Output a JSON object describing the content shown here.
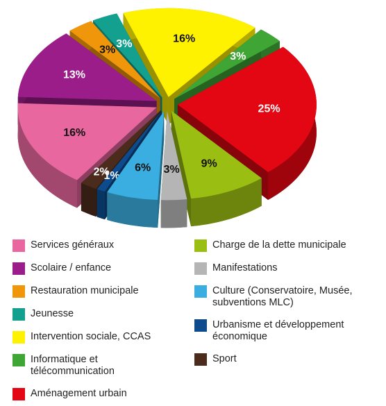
{
  "chart_data": {
    "type": "pie",
    "categories": [
      "Services généraux",
      "Scolaire / enfance",
      "Restauration municipale",
      "Jeunesse",
      "Intervention sociale, CCAS",
      "Informatique et télécommunication",
      "Aménagement urbain",
      "Charge de la dette municipale",
      "Manifestations",
      "Culture (Conservatoire, Musée, subventions MLC)",
      "Urbanisme et développement économique",
      "Sport"
    ],
    "values": [
      16,
      13,
      3,
      3,
      16,
      3,
      25,
      9,
      3,
      6,
      1,
      2
    ],
    "value_labels": [
      "16%",
      "13%",
      "3%",
      "3%",
      "16%",
      "3%",
      "25%",
      "9%",
      "3%",
      "6%",
      "1%",
      "2%"
    ],
    "colors": [
      "#e8679f",
      "#9b1d8a",
      "#f0960a",
      "#13a08f",
      "#fff200",
      "#3fa535",
      "#e30613",
      "#9bbe12",
      "#b5b5b5",
      "#3aaee0",
      "#0d4b8c",
      "#4a2b1c"
    ],
    "legend": "bottom"
  }
}
